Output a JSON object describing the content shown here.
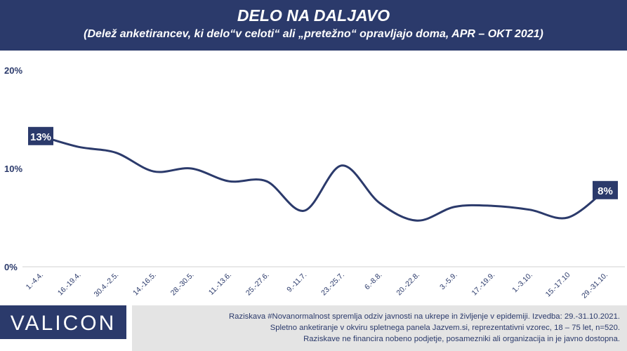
{
  "header": {
    "title": "DELO NA DALJAVO",
    "subtitle": "(Delež anketirancev, ki delo“v celoti“ ali „pretežno“ opravljajo doma, APR – OKT 2021)"
  },
  "brand": {
    "logo": "VALICON",
    "primary_color": "#2b3a6b",
    "note_bg": "#e4e4e4"
  },
  "footer": {
    "lines": [
      "Raziskava #Novanormalnost spremlja odziv javnosti na ukrepe in življenje v epidemiji. Izvedba: 29.-31.10.2021.",
      "Spletno anketiranje v okviru spletnega panela Jazvem.si, reprezentativni vzorec, 18 – 75 let, n=520.",
      "Raziskave ne financira nobeno podjetje, posamezniki ali organizacija in je javno dostopna."
    ]
  },
  "chart_data": {
    "type": "line",
    "title": "DELO NA DALJAVO",
    "categories": [
      "1.-4.4.",
      "16.-19.4.",
      "30.4.-2.5.",
      "14.-16.5.",
      "28.-30.5.",
      "11.-13.6.",
      "25.-27.6.",
      "9.-11.7.",
      "23.-25.7.",
      "6.-8.8.",
      "20.-22.8.",
      "3.-5.9.",
      "17.-19.9.",
      "1.-3.10.",
      "15.-17.10",
      "29.-31.10."
    ],
    "series": [
      {
        "values": [
          13.3,
          12.2,
          11.6,
          9.7,
          10.0,
          8.7,
          8.7,
          5.7,
          10.3,
          6.5,
          4.7,
          6.1,
          6.2,
          5.8,
          5.0,
          7.8
        ],
        "color": "#2b3a6b"
      }
    ],
    "ylim": [
      0,
      20
    ],
    "yticks": [
      "0%",
      "10%",
      "20%"
    ],
    "ytick_values": [
      0,
      10,
      20
    ],
    "grid": false,
    "data_labels": [
      {
        "index": 0,
        "text": "13%"
      },
      {
        "index": 15,
        "text": "8%"
      }
    ]
  }
}
